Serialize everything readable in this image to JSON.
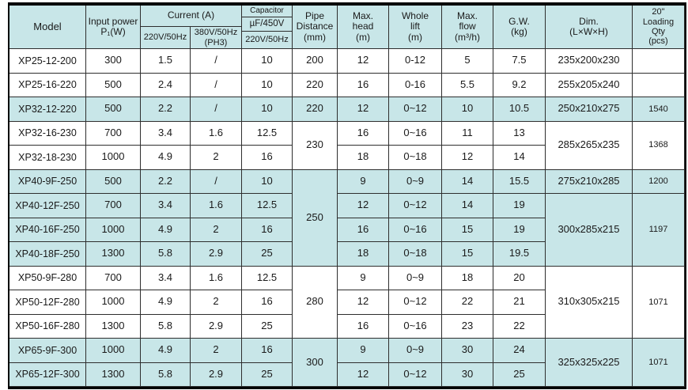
{
  "colors": {
    "highlight": "#c8e6e8",
    "grid_line": "#2e2e2e",
    "outer_border": "#000000",
    "text": "#1a1a1a"
  },
  "table": {
    "header": {
      "model": "Model",
      "input_power": "Input power\nP₁(W)",
      "current": "Current (A)",
      "v220": "220V/50Hz",
      "v380": "380V/50Hz\n(PH3)",
      "capacitor": "Capacitor",
      "uf": "µF/450V",
      "cap_v220": "220V/50Hz",
      "pipe": "Pipe\nDistance\n(mm)",
      "max_head": "Max.\nhead\n(m)",
      "whole_lift": "Whole\nlift\n(m)",
      "max_flow": "Max.\nflow\n(m³/h)",
      "gw": "G.W.\n(kg)",
      "dim": "Dim.\n(L×W×H)",
      "qty": "20\"\nLoading\nQty\n(pcs)"
    },
    "rows": [
      {
        "model": "XP25-12-200",
        "p1": "300",
        "i220": "1.5",
        "i380": "/",
        "cap": "10",
        "pipe": "200",
        "head": "12",
        "lift": "0-12",
        "flow": "5",
        "gw": "7.5",
        "dim": "235x200x230",
        "qty": "",
        "hl": false
      },
      {
        "model": "XP25-16-220",
        "p1": "500",
        "i220": "2.4",
        "i380": "/",
        "cap": "10",
        "pipe": "220",
        "head": "16",
        "lift": "0-16",
        "flow": "5.5",
        "gw": "9.2",
        "dim": "255x205x240",
        "qty": "",
        "hl": false
      },
      {
        "model": "XP32-12-220",
        "p1": "500",
        "i220": "2.2",
        "i380": "/",
        "cap": "10",
        "pipe": "220",
        "head": "12",
        "lift": "0~12",
        "flow": "10",
        "gw": "10.5",
        "dim": "250x210x275",
        "qty": "1540",
        "hl": true
      },
      {
        "model": "XP32-16-230",
        "p1": "700",
        "i220": "3.4",
        "i380": "1.6",
        "cap": "12.5",
        "pipe": "230",
        "pipe_span": 2,
        "head": "16",
        "lift": "0~16",
        "flow": "11",
        "gw": "13",
        "dim": "285x265x235",
        "dim_span": 2,
        "qty": "1368",
        "qty_span": 2,
        "hl": false
      },
      {
        "model": "XP32-18-230",
        "p1": "1000",
        "i220": "4.9",
        "i380": "2",
        "cap": "16",
        "head": "18",
        "lift": "0~18",
        "flow": "12",
        "gw": "14",
        "hl": false
      },
      {
        "model": "XP40-9F-250",
        "p1": "500",
        "i220": "2.2",
        "i380": "/",
        "cap": "10",
        "pipe": "250",
        "pipe_span": 4,
        "head": "9",
        "lift": "0~9",
        "flow": "14",
        "gw": "15.5",
        "dim": "275x210x285",
        "qty": "1200",
        "hl": true
      },
      {
        "model": "XP40-12F-250",
        "p1": "700",
        "i220": "3.4",
        "i380": "1.6",
        "cap": "12.5",
        "head": "12",
        "lift": "0~12",
        "flow": "14",
        "gw": "19",
        "dim": "300x285x215",
        "dim_span": 3,
        "qty": "1197",
        "qty_span": 3,
        "hl": true
      },
      {
        "model": "XP40-16F-250",
        "p1": "1000",
        "i220": "4.9",
        "i380": "2",
        "cap": "16",
        "head": "16",
        "lift": "0~16",
        "flow": "15",
        "gw": "19",
        "hl": true
      },
      {
        "model": "XP40-18F-250",
        "p1": "1300",
        "i220": "5.8",
        "i380": "2.9",
        "cap": "25",
        "head": "18",
        "lift": "0~18",
        "flow": "15",
        "gw": "19.5",
        "hl": true
      },
      {
        "model": "XP50-9F-280",
        "p1": "700",
        "i220": "3.4",
        "i380": "1.6",
        "cap": "12.5",
        "pipe": "280",
        "pipe_span": 3,
        "head": "9",
        "lift": "0~9",
        "flow": "18",
        "gw": "20",
        "dim": "310x305x215",
        "dim_span": 3,
        "qty": "1071",
        "qty_span": 3,
        "hl": false
      },
      {
        "model": "XP50-12F-280",
        "p1": "1000",
        "i220": "4.9",
        "i380": "2",
        "cap": "16",
        "head": "12",
        "lift": "0~12",
        "flow": "22",
        "gw": "21",
        "hl": false
      },
      {
        "model": "XP50-16F-280",
        "p1": "1300",
        "i220": "5.8",
        "i380": "2.9",
        "cap": "25",
        "head": "16",
        "lift": "0~16",
        "flow": "23",
        "gw": "22",
        "hl": false
      },
      {
        "model": "XP65-9F-300",
        "p1": "1000",
        "i220": "4.9",
        "i380": "2",
        "cap": "16",
        "pipe": "300",
        "pipe_span": 2,
        "head": "9",
        "lift": "0~9",
        "flow": "30",
        "gw": "24",
        "dim": "325x325x225",
        "dim_span": 2,
        "qty": "1071",
        "qty_span": 2,
        "hl": true
      },
      {
        "model": "XP65-12F-300",
        "p1": "1300",
        "i220": "5.8",
        "i380": "2.9",
        "cap": "25",
        "head": "12",
        "lift": "0~12",
        "flow": "30",
        "gw": "25",
        "hl": true
      }
    ]
  }
}
